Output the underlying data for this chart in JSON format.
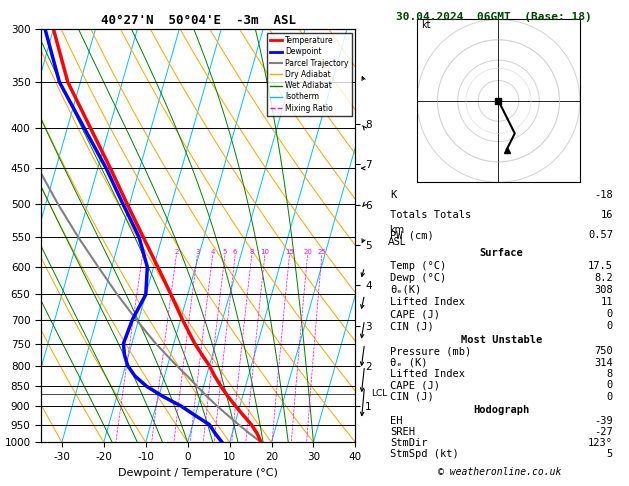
{
  "title_left": "40°27'N  50°04'E  -3m  ASL",
  "title_right": "30.04.2024  06GMT  (Base: 18)",
  "xlabel": "Dewpoint / Temperature (°C)",
  "pressure_levels": [
    300,
    350,
    400,
    450,
    500,
    550,
    600,
    650,
    700,
    750,
    800,
    850,
    900,
    950,
    1000
  ],
  "temp_data": {
    "pressure": [
      1000,
      975,
      950,
      925,
      900,
      875,
      850,
      825,
      800,
      775,
      750,
      700,
      650,
      600,
      550,
      500,
      450,
      400,
      350,
      300
    ],
    "temperature": [
      17.5,
      16.0,
      14.0,
      11.5,
      9.0,
      6.5,
      4.2,
      2.0,
      0.0,
      -2.5,
      -5.0,
      -9.5,
      -14.0,
      -19.0,
      -24.5,
      -30.5,
      -37.0,
      -44.5,
      -53.0,
      -60.0
    ]
  },
  "dewpoint_data": {
    "pressure": [
      1000,
      975,
      950,
      925,
      900,
      875,
      850,
      825,
      800,
      775,
      750,
      700,
      650,
      600,
      550,
      500,
      450,
      400,
      350,
      300
    ],
    "dewpoint": [
      8.2,
      6.0,
      4.0,
      0.0,
      -4.0,
      -9.0,
      -13.5,
      -17.0,
      -19.5,
      -21.0,
      -22.0,
      -21.5,
      -20.0,
      -21.5,
      -25.5,
      -31.5,
      -38.0,
      -46.0,
      -55.0,
      -62.0
    ]
  },
  "parcel_data": {
    "pressure": [
      1000,
      975,
      950,
      925,
      900,
      875,
      850,
      825,
      800,
      775,
      750,
      700,
      650,
      600,
      550,
      500,
      450,
      400,
      350,
      300
    ],
    "temperature": [
      17.5,
      14.2,
      11.0,
      7.8,
      4.6,
      1.5,
      -1.5,
      -4.5,
      -7.8,
      -11.0,
      -14.3,
      -20.5,
      -26.8,
      -33.2,
      -40.0,
      -47.0,
      -54.2,
      -61.5,
      -63.0,
      -64.5
    ]
  },
  "xmin": -35,
  "xmax": 40,
  "pmin": 300,
  "pmax": 1000,
  "skew_factor": 28,
  "km_ticks": [
    1,
    2,
    3,
    4,
    5,
    6,
    7,
    8
  ],
  "lcl_pressure": 868,
  "colors": {
    "temperature": "#FF0000",
    "dewpoint": "#0000FF",
    "parcel": "#808080",
    "dry_adiabat": "#FFA500",
    "wet_adiabat": "#008000",
    "isotherm": "#00BFFF",
    "mixing_ratio": "#FF00FF",
    "background": "#FFFFFF"
  },
  "mixing_ratio_labels": [
    1,
    2,
    3,
    4,
    5,
    6,
    8,
    10,
    15,
    20,
    25
  ],
  "stats": {
    "K": -18,
    "Totals_Totals": 16,
    "PW_cm": 0.57,
    "Surface_Temp": 17.5,
    "Surface_Dewp": 8.2,
    "theta_e": 308,
    "Lifted_Index": 11,
    "CAPE": 0,
    "CIN": 0,
    "MU_Pressure": 750,
    "MU_theta_e": 314,
    "MU_Lifted_Index": 8,
    "MU_CAPE": 0,
    "MU_CIN": 0,
    "EH": -39,
    "SREH": -27,
    "StmDir": 123,
    "StmSpd": 5
  },
  "wind_profile": {
    "pressure": [
      1000,
      950,
      900,
      850,
      800,
      750,
      700,
      650,
      600,
      550,
      500,
      450,
      400,
      350,
      300
    ],
    "direction_deg": [
      150,
      145,
      140,
      130,
      125,
      120,
      115,
      110,
      105,
      100,
      95,
      90,
      85,
      80,
      75
    ],
    "speed_kt": [
      4,
      4,
      4,
      5,
      5,
      5,
      6,
      6,
      7,
      8,
      9,
      10,
      11,
      12,
      13
    ]
  },
  "hodograph_u": [
    0,
    1,
    2,
    3,
    4,
    3,
    2
  ],
  "hodograph_v": [
    0,
    -2,
    -4,
    -6,
    -8,
    -10,
    -12
  ]
}
